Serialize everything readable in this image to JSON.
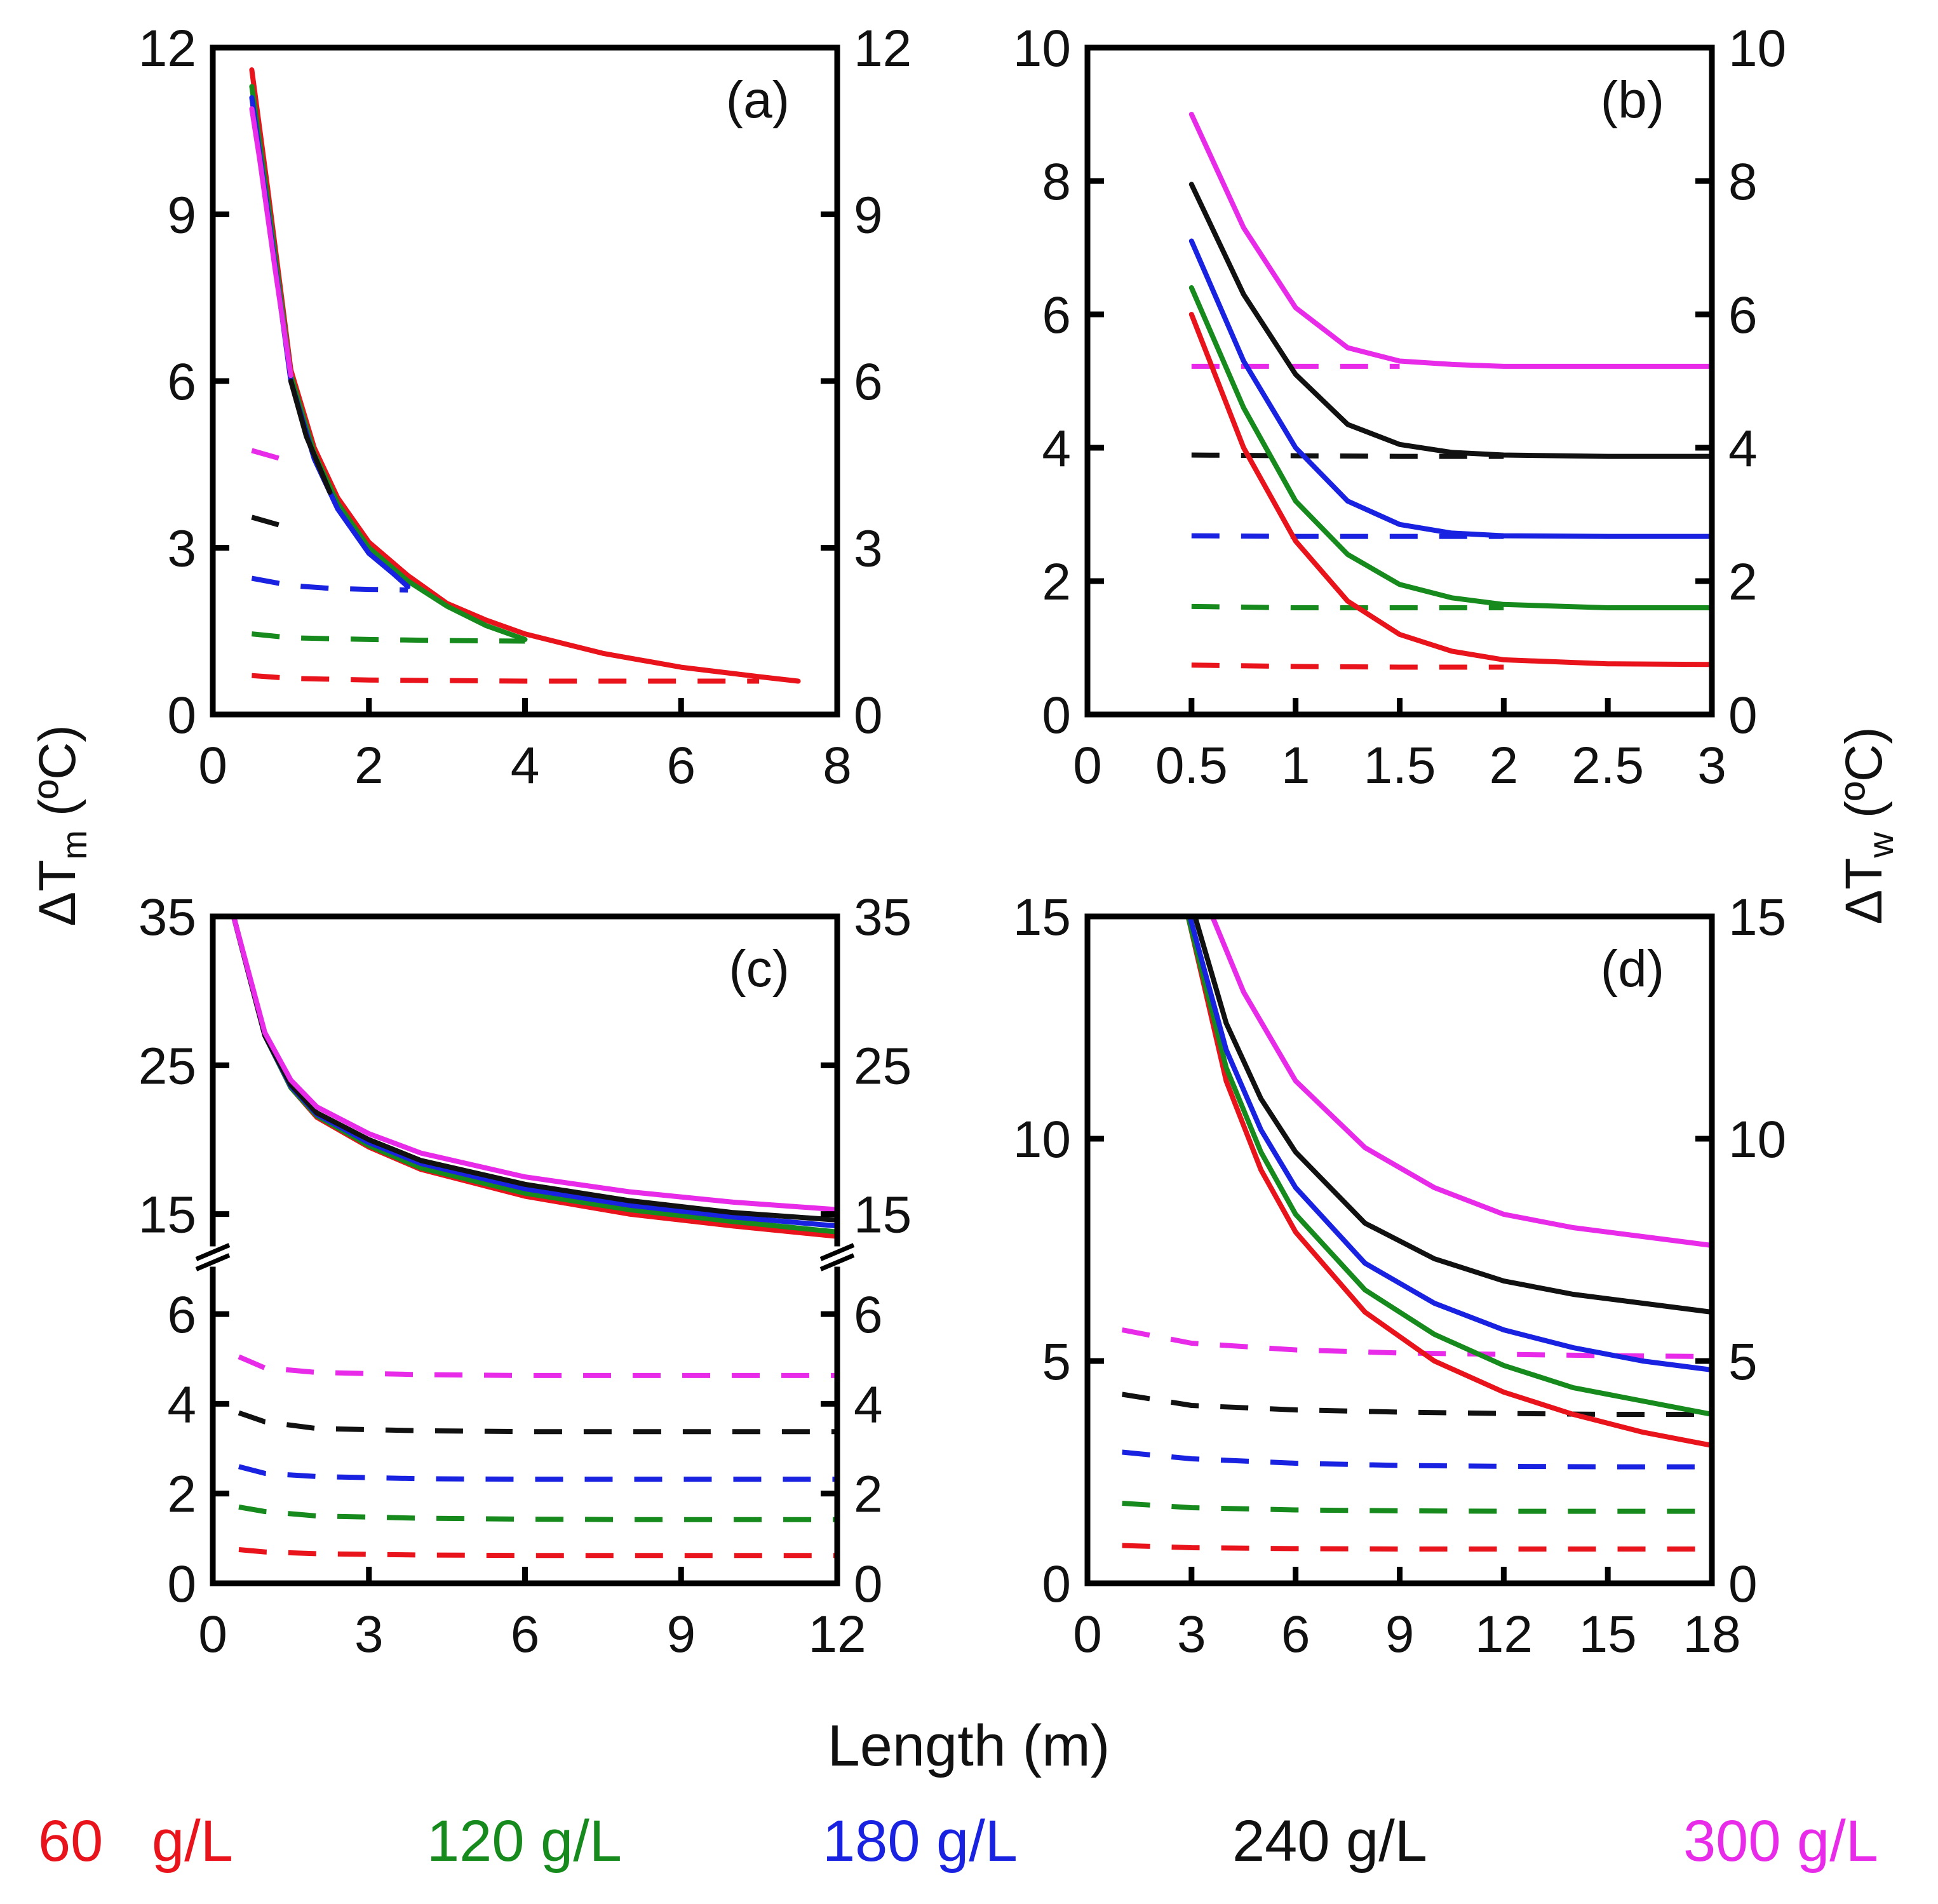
{
  "figure": {
    "ylabel_left_main": "ΔT",
    "ylabel_left_sub": "m",
    "ylabel_left_unit": "(ºC)",
    "ylabel_right_main": "ΔT",
    "ylabel_right_sub": "w",
    "ylabel_right_unit": "(ºC)",
    "xlabel": "Length (m)"
  },
  "legend": [
    {
      "label": "60   g/L",
      "color": "#e8131b"
    },
    {
      "label": "120 g/L",
      "color": "#168a1c"
    },
    {
      "label": "180 g/L",
      "color": "#1822e0"
    },
    {
      "label": "240 g/L",
      "color": "#111111"
    },
    {
      "label": "300 g/L",
      "color": "#e82be8"
    }
  ],
  "chart_data": [
    {
      "type": "line",
      "panel": "(a)",
      "xlim": [
        0,
        8
      ],
      "ylim": [
        0,
        12
      ],
      "xticks": [
        0,
        2,
        4,
        6,
        8
      ],
      "xtick_labels": [
        "0",
        "2",
        "4",
        "6",
        "8"
      ],
      "yticks": [
        0,
        3,
        6,
        9,
        12
      ],
      "ytick_labels": [
        "0",
        "3",
        "6",
        "9",
        "12"
      ],
      "series": [
        {
          "name": "60 g/L ΔTm",
          "color": "#e8131b",
          "dash": false,
          "x": [
            0.5,
            0.7,
            1,
            1.3,
            1.6,
            2,
            2.5,
            3,
            3.5,
            4,
            5,
            6,
            7,
            7.5
          ],
          "y": [
            11.6,
            9.5,
            6.2,
            4.8,
            3.9,
            3.1,
            2.5,
            2.0,
            1.7,
            1.45,
            1.1,
            0.85,
            0.68,
            0.6
          ]
        },
        {
          "name": "120 g/L ΔTm",
          "color": "#168a1c",
          "dash": false,
          "x": [
            0.5,
            0.7,
            1,
            1.3,
            1.6,
            2,
            2.5,
            3,
            3.5,
            4
          ],
          "y": [
            11.3,
            9.3,
            6.1,
            4.7,
            3.8,
            3.0,
            2.4,
            1.95,
            1.6,
            1.35
          ]
        },
        {
          "name": "180 g/L ΔTm",
          "color": "#1822e0",
          "dash": false,
          "x": [
            0.5,
            0.7,
            1,
            1.3,
            1.6,
            2,
            2.3,
            2.5
          ],
          "y": [
            11.1,
            9.1,
            6.0,
            4.6,
            3.7,
            2.9,
            2.55,
            2.3
          ]
        },
        {
          "name": "240 g/L ΔTm",
          "color": "#111111",
          "dash": false,
          "x": [
            1,
            1.2,
            1.5
          ],
          "y": [
            6.0,
            5.0,
            4.0
          ]
        },
        {
          "name": "300 g/L ΔTm",
          "color": "#e82be8",
          "dash": false,
          "x": [
            0.5,
            0.6,
            0.8,
            1
          ],
          "y": [
            10.9,
            10.0,
            8.0,
            6.1
          ]
        },
        {
          "name": "60 g/L ΔTw",
          "color": "#e8131b",
          "dash": true,
          "x": [
            0.5,
            1,
            2,
            4,
            6,
            7
          ],
          "y": [
            0.7,
            0.65,
            0.62,
            0.6,
            0.6,
            0.6
          ]
        },
        {
          "name": "120 g/L ΔTw",
          "color": "#168a1c",
          "dash": true,
          "x": [
            0.5,
            1,
            2,
            3,
            4
          ],
          "y": [
            1.45,
            1.38,
            1.35,
            1.33,
            1.32
          ]
        },
        {
          "name": "180 g/L ΔTw",
          "color": "#1822e0",
          "dash": true,
          "x": [
            0.5,
            1,
            1.5,
            2,
            2.5
          ],
          "y": [
            2.45,
            2.32,
            2.27,
            2.25,
            2.24
          ]
        },
        {
          "name": "240 g/L ΔTw",
          "color": "#111111",
          "dash": true,
          "x": [
            0.5,
            1
          ],
          "y": [
            3.55,
            3.35
          ]
        },
        {
          "name": "300 g/L ΔTw",
          "color": "#e82be8",
          "dash": true,
          "x": [
            0.5,
            1
          ],
          "y": [
            4.75,
            4.55
          ]
        }
      ]
    },
    {
      "type": "line",
      "panel": "(b)",
      "xlim": [
        0,
        3
      ],
      "ylim": [
        0,
        10
      ],
      "xticks": [
        0,
        0.5,
        1,
        1.5,
        2,
        2.5,
        3
      ],
      "xtick_labels": [
        "0",
        "0.5",
        "1",
        "1.5",
        "2",
        "2.5",
        "3"
      ],
      "yticks": [
        0,
        2,
        4,
        6,
        8,
        10
      ],
      "ytick_labels": [
        "0",
        "2",
        "4",
        "6",
        "8",
        "10"
      ],
      "series": [
        {
          "name": "60 g/L ΔTm",
          "color": "#e8131b",
          "dash": false,
          "x": [
            0.5,
            0.75,
            1,
            1.25,
            1.5,
            1.75,
            2,
            2.5,
            3
          ],
          "y": [
            6.0,
            4.0,
            2.6,
            1.7,
            1.2,
            0.95,
            0.82,
            0.76,
            0.75
          ]
        },
        {
          "name": "120 g/L ΔTm",
          "color": "#168a1c",
          "dash": false,
          "x": [
            0.5,
            0.75,
            1,
            1.25,
            1.5,
            1.75,
            2,
            2.5,
            3
          ],
          "y": [
            6.4,
            4.6,
            3.2,
            2.4,
            1.95,
            1.75,
            1.65,
            1.6,
            1.6
          ]
        },
        {
          "name": "180 g/L ΔTm",
          "color": "#1822e0",
          "dash": false,
          "x": [
            0.5,
            0.75,
            1,
            1.25,
            1.5,
            1.75,
            2,
            2.5,
            3
          ],
          "y": [
            7.1,
            5.3,
            4.0,
            3.2,
            2.85,
            2.72,
            2.68,
            2.67,
            2.67
          ]
        },
        {
          "name": "240 g/L ΔTm",
          "color": "#111111",
          "dash": false,
          "x": [
            0.5,
            0.75,
            1,
            1.25,
            1.5,
            1.75,
            2,
            2.5,
            3
          ],
          "y": [
            7.95,
            6.3,
            5.1,
            4.35,
            4.05,
            3.93,
            3.89,
            3.87,
            3.87
          ]
        },
        {
          "name": "300 g/L ΔTm",
          "color": "#e82be8",
          "dash": false,
          "x": [
            0.5,
            0.75,
            1,
            1.25,
            1.5,
            1.75,
            2,
            2.5,
            3
          ],
          "y": [
            9.0,
            7.3,
            6.1,
            5.5,
            5.3,
            5.25,
            5.22,
            5.22,
            5.22
          ]
        },
        {
          "name": "60 g/L ΔTw",
          "color": "#e8131b",
          "dash": true,
          "x": [
            0.5,
            1,
            1.5,
            2
          ],
          "y": [
            0.74,
            0.72,
            0.71,
            0.71
          ]
        },
        {
          "name": "120 g/L ΔTw",
          "color": "#168a1c",
          "dash": true,
          "x": [
            0.5,
            1,
            1.5,
            2
          ],
          "y": [
            1.62,
            1.6,
            1.6,
            1.6
          ]
        },
        {
          "name": "180 g/L ΔTw",
          "color": "#1822e0",
          "dash": true,
          "x": [
            0.5,
            1,
            1.5,
            2
          ],
          "y": [
            2.68,
            2.67,
            2.67,
            2.67
          ]
        },
        {
          "name": "240 g/L ΔTw",
          "color": "#111111",
          "dash": true,
          "x": [
            0.5,
            1,
            1.5,
            2
          ],
          "y": [
            3.89,
            3.88,
            3.87,
            3.87
          ]
        },
        {
          "name": "300 g/L ΔTw",
          "color": "#e82be8",
          "dash": true,
          "x": [
            0.5,
            1,
            1.5
          ],
          "y": [
            5.22,
            5.22,
            5.22
          ]
        }
      ]
    },
    {
      "type": "line",
      "panel": "(c)",
      "xlim": [
        0,
        12
      ],
      "ylim_lower": [
        0,
        7
      ],
      "ylim_upper": [
        13,
        35
      ],
      "broken_axis": true,
      "xticks": [
        0,
        3,
        6,
        9,
        12
      ],
      "xtick_labels": [
        "0",
        "3",
        "6",
        "9",
        "12"
      ],
      "yticks_lower": [
        0,
        2,
        4,
        6
      ],
      "ytick_labels_lower": [
        "0",
        "2",
        "4",
        "6"
      ],
      "yticks_upper": [
        15,
        25,
        35
      ],
      "ytick_labels_upper": [
        "15",
        "25",
        "35"
      ],
      "series": [
        {
          "name": "60 g/L ΔTm",
          "color": "#e8131b",
          "dash": false,
          "x": [
            0.4,
            1,
            1.5,
            2,
            3,
            4,
            6,
            8,
            10,
            12
          ],
          "y": [
            35,
            27,
            23.5,
            21.5,
            19.5,
            18,
            16.2,
            15,
            14.2,
            13.5
          ]
        },
        {
          "name": "120 g/L ΔTm",
          "color": "#168a1c",
          "dash": false,
          "x": [
            0.4,
            1,
            1.5,
            2,
            3,
            4,
            6,
            8,
            10,
            12
          ],
          "y": [
            35,
            27,
            23.5,
            21.6,
            19.6,
            18.1,
            16.4,
            15.3,
            14.5,
            13.8
          ]
        },
        {
          "name": "180 g/L ΔTm",
          "color": "#1822e0",
          "dash": false,
          "x": [
            0.4,
            1,
            1.5,
            2,
            3,
            4,
            6,
            8,
            10,
            12
          ],
          "y": [
            35,
            27,
            23.6,
            21.7,
            19.8,
            18.4,
            16.7,
            15.6,
            14.8,
            14.2
          ]
        },
        {
          "name": "240 g/L ΔTm",
          "color": "#111111",
          "dash": false,
          "x": [
            0.4,
            1,
            1.5,
            2,
            3,
            4,
            6,
            8,
            10,
            12
          ],
          "y": [
            35,
            27,
            23.7,
            21.8,
            20.0,
            18.6,
            17.0,
            15.9,
            15.1,
            14.6
          ]
        },
        {
          "name": "300 g/L ΔTm",
          "color": "#e82be8",
          "dash": false,
          "x": [
            0.4,
            1,
            1.5,
            2,
            3,
            4,
            6,
            8,
            10,
            12
          ],
          "y": [
            35,
            27.2,
            24.0,
            22.2,
            20.4,
            19.1,
            17.5,
            16.5,
            15.8,
            15.3
          ]
        },
        {
          "name": "60 g/L ΔTw",
          "color": "#e8131b",
          "dash": true,
          "x": [
            0.5,
            1,
            2,
            4,
            6,
            8,
            10,
            12
          ],
          "y": [
            0.75,
            0.7,
            0.66,
            0.63,
            0.62,
            0.62,
            0.62,
            0.62
          ]
        },
        {
          "name": "120 g/L ΔTw",
          "color": "#168a1c",
          "dash": true,
          "x": [
            0.5,
            1,
            2,
            4,
            6,
            8,
            10,
            12
          ],
          "y": [
            1.7,
            1.6,
            1.5,
            1.45,
            1.43,
            1.42,
            1.42,
            1.42
          ]
        },
        {
          "name": "180 g/L ΔTw",
          "color": "#1822e0",
          "dash": true,
          "x": [
            0.5,
            1,
            2,
            4,
            6,
            8,
            10,
            12
          ],
          "y": [
            2.6,
            2.45,
            2.38,
            2.33,
            2.32,
            2.32,
            2.32,
            2.32
          ]
        },
        {
          "name": "240 g/L ΔTw",
          "color": "#111111",
          "dash": true,
          "x": [
            0.5,
            1,
            2,
            4,
            6,
            8,
            10,
            12
          ],
          "y": [
            3.8,
            3.6,
            3.45,
            3.4,
            3.38,
            3.38,
            3.38,
            3.38
          ]
        },
        {
          "name": "300 g/L ΔTw",
          "color": "#e82be8",
          "dash": true,
          "x": [
            0.5,
            1,
            2,
            4,
            6,
            8,
            10,
            12
          ],
          "y": [
            5.05,
            4.8,
            4.7,
            4.65,
            4.63,
            4.63,
            4.63,
            4.63
          ]
        }
      ]
    },
    {
      "type": "line",
      "panel": "(d)",
      "xlim": [
        0,
        18
      ],
      "ylim": [
        0,
        15
      ],
      "xticks": [
        0,
        3,
        6,
        9,
        12,
        15,
        18
      ],
      "xtick_labels": [
        "0",
        "3",
        "6",
        "9",
        "12",
        "15",
        "18"
      ],
      "yticks": [
        0,
        5,
        10,
        15
      ],
      "ytick_labels": [
        "0",
        "5",
        "10",
        "15"
      ],
      "series": [
        {
          "name": "60 g/L ΔTm",
          "color": "#e8131b",
          "dash": false,
          "x": [
            2.9,
            4,
            5,
            6,
            8,
            10,
            12,
            14,
            16,
            18
          ],
          "y": [
            15,
            11.3,
            9.3,
            7.9,
            6.1,
            5.0,
            4.3,
            3.8,
            3.4,
            3.1
          ]
        },
        {
          "name": "120 g/L ΔTm",
          "color": "#168a1c",
          "dash": false,
          "x": [
            2.9,
            4,
            5,
            6,
            8,
            10,
            12,
            14,
            16,
            18
          ],
          "y": [
            15,
            11.6,
            9.7,
            8.3,
            6.6,
            5.6,
            4.9,
            4.4,
            4.1,
            3.8
          ]
        },
        {
          "name": "180 g/L ΔTm",
          "color": "#1822e0",
          "dash": false,
          "x": [
            2.95,
            4,
            5,
            6,
            8,
            10,
            12,
            14,
            16,
            18
          ],
          "y": [
            15,
            12.0,
            10.2,
            8.9,
            7.2,
            6.3,
            5.7,
            5.3,
            5.0,
            4.8
          ]
        },
        {
          "name": "240 g/L ΔTm",
          "color": "#111111",
          "dash": false,
          "x": [
            3.1,
            4,
            5,
            6,
            8,
            10,
            12,
            14,
            16,
            18
          ],
          "y": [
            15,
            12.6,
            10.9,
            9.7,
            8.1,
            7.3,
            6.8,
            6.5,
            6.3,
            6.1
          ]
        },
        {
          "name": "300 g/L ΔTm",
          "color": "#e82be8",
          "dash": false,
          "x": [
            3.6,
            4.5,
            6,
            8,
            10,
            12,
            14,
            16,
            18
          ],
          "y": [
            15,
            13.3,
            11.3,
            9.8,
            8.9,
            8.3,
            8.0,
            7.8,
            7.6
          ]
        },
        {
          "name": "60 g/L ΔTw",
          "color": "#e8131b",
          "dash": true,
          "x": [
            1,
            3,
            6,
            9,
            12,
            15,
            18
          ],
          "y": [
            0.85,
            0.8,
            0.78,
            0.77,
            0.77,
            0.77,
            0.77
          ]
        },
        {
          "name": "120 g/L ΔTw",
          "color": "#168a1c",
          "dash": true,
          "x": [
            1,
            3,
            6,
            9,
            12,
            15,
            18
          ],
          "y": [
            1.8,
            1.7,
            1.65,
            1.63,
            1.62,
            1.62,
            1.62
          ]
        },
        {
          "name": "180 g/L ΔTw",
          "color": "#1822e0",
          "dash": true,
          "x": [
            1,
            3,
            6,
            9,
            12,
            15,
            18
          ],
          "y": [
            2.95,
            2.8,
            2.7,
            2.65,
            2.63,
            2.62,
            2.62
          ]
        },
        {
          "name": "240 g/L ΔTw",
          "color": "#111111",
          "dash": true,
          "x": [
            1,
            3,
            6,
            9,
            12,
            15,
            18
          ],
          "y": [
            4.25,
            4.0,
            3.9,
            3.85,
            3.82,
            3.8,
            3.8
          ]
        },
        {
          "name": "300 g/L ΔTw",
          "color": "#e82be8",
          "dash": true,
          "x": [
            1,
            3,
            6,
            9,
            12,
            15,
            18
          ],
          "y": [
            5.7,
            5.4,
            5.25,
            5.18,
            5.15,
            5.12,
            5.1
          ]
        }
      ]
    }
  ]
}
